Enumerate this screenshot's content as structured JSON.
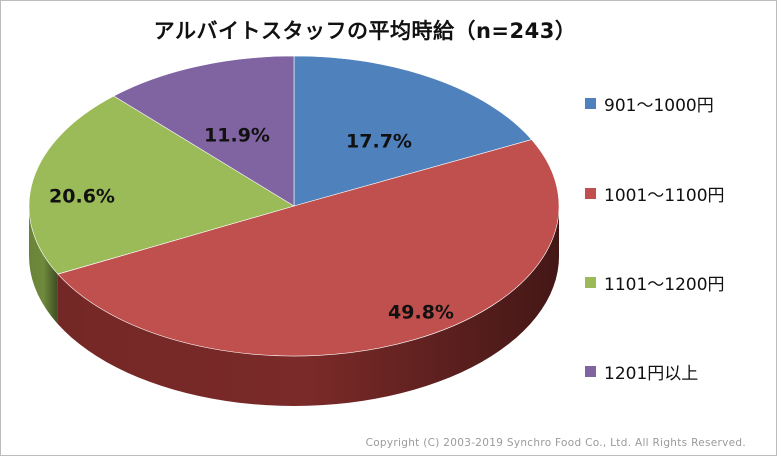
{
  "chart_data": {
    "type": "pie",
    "title": "アルバイトスタッフの平均時給（n=243）",
    "categories": [
      "901〜1000円",
      "1001〜1100円",
      "1101〜1200円",
      "1201円以上"
    ],
    "values": [
      17.7,
      49.8,
      20.6,
      11.9
    ],
    "value_labels": [
      "17.7%",
      "49.8%",
      "20.6%",
      "11.9%"
    ],
    "colors": [
      "#4f81bd",
      "#c0504d",
      "#9bbb59",
      "#8064a2"
    ],
    "side_colors": [
      "#3a6190",
      "#7a2a28",
      "#6f8a3c",
      "#5c4677"
    ],
    "legend_position": "right",
    "style": "3d"
  },
  "footer": {
    "copyright": "Copyright (C) 2003-2019  Synchro Food Co., Ltd. All Rights Reserved."
  }
}
